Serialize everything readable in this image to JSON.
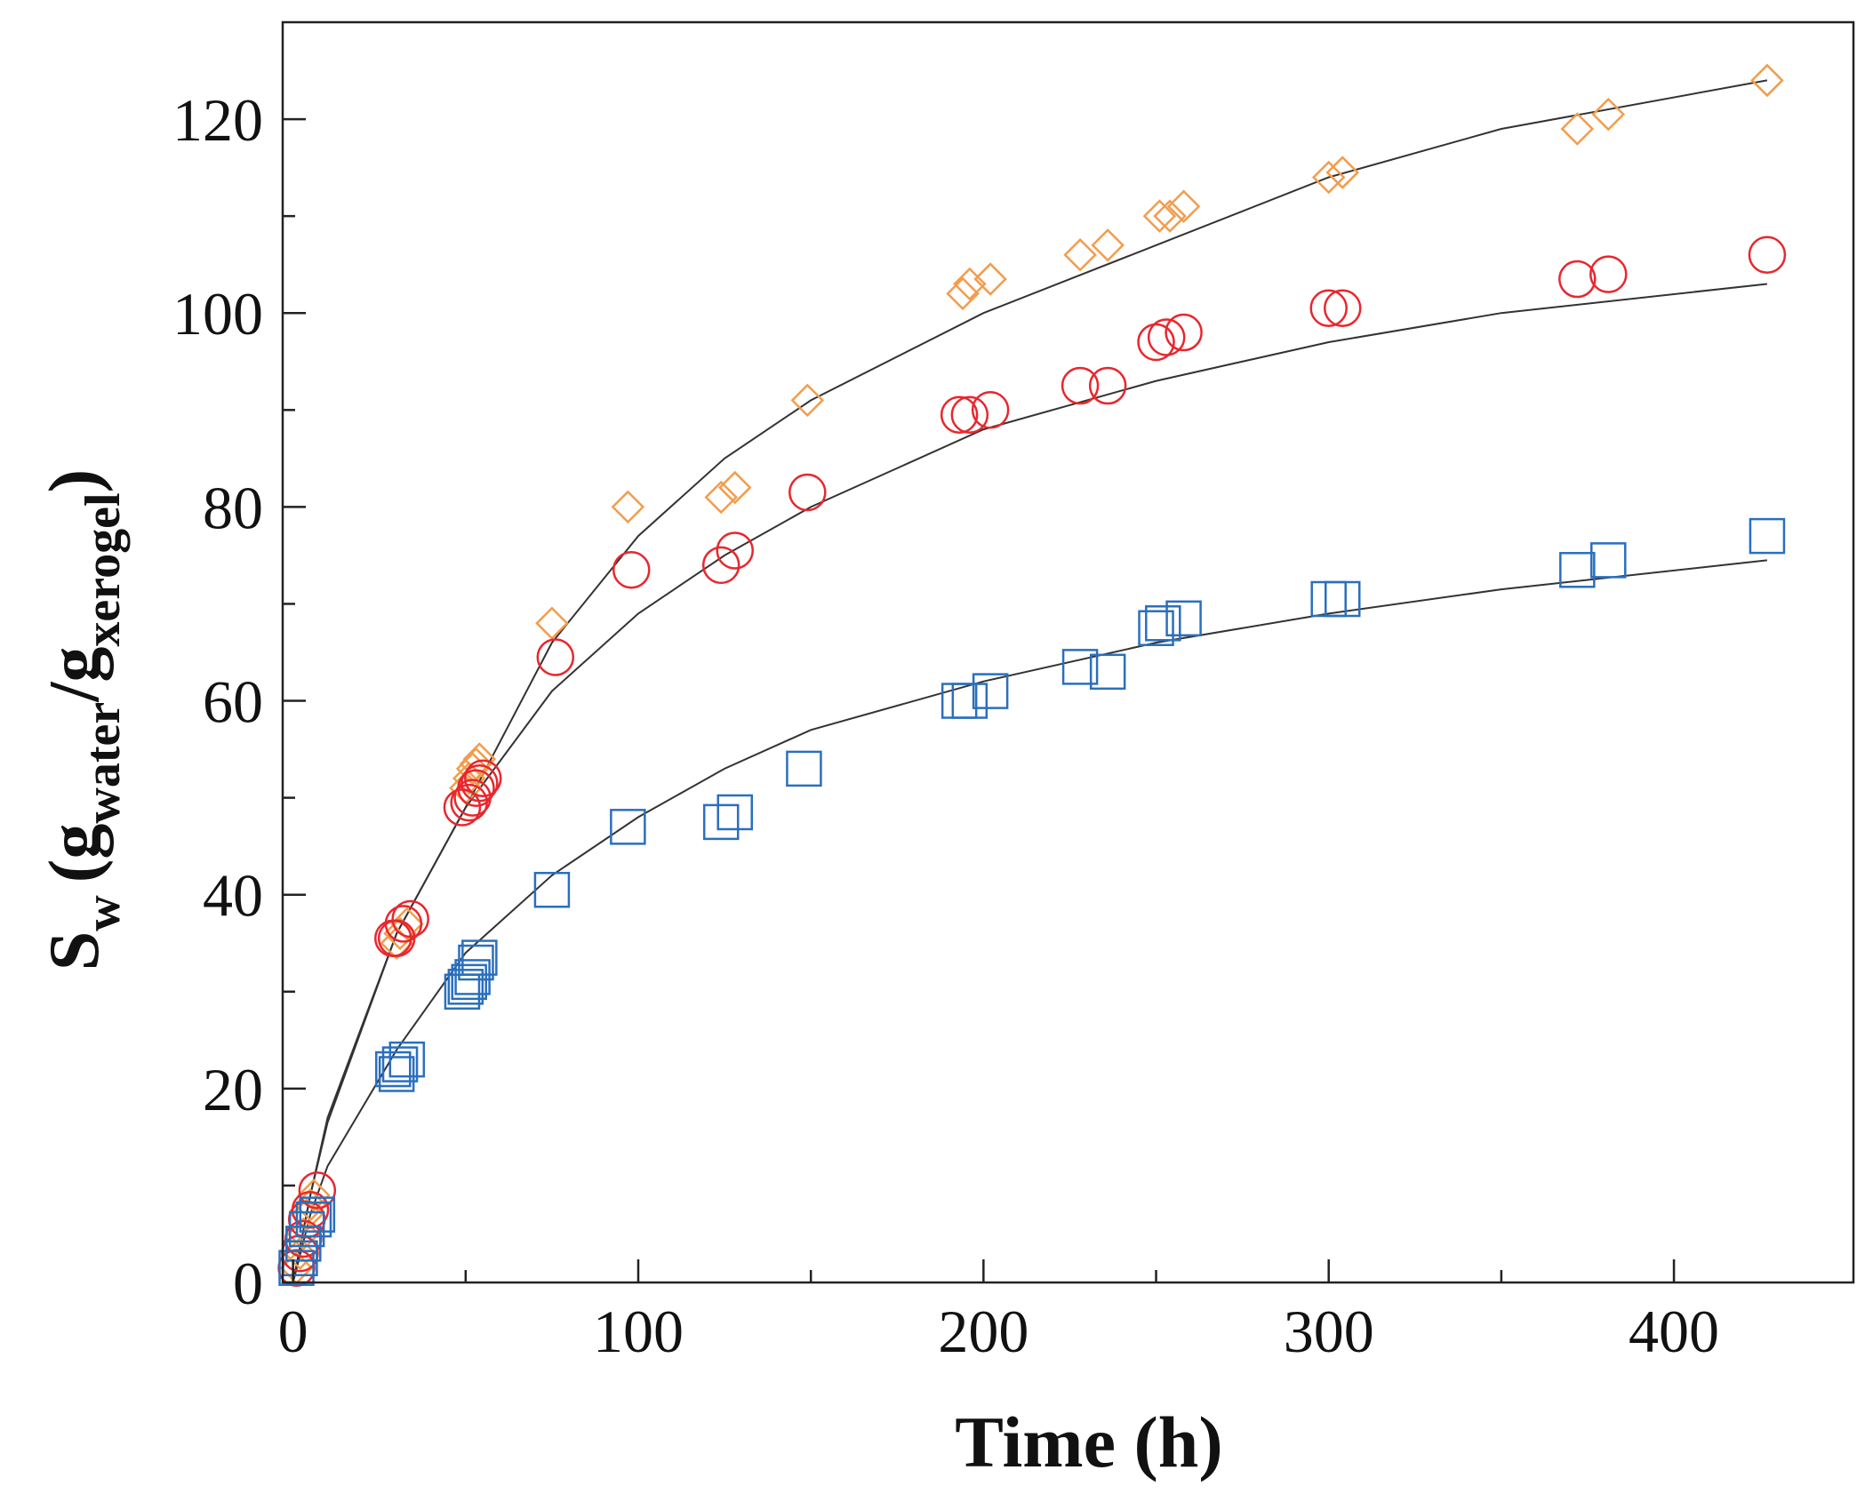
{
  "chart_data": {
    "type": "scatter",
    "title": "",
    "xlabel": "Time (h)",
    "ylabel": {
      "main": "S",
      "main_sub": "w",
      "open": "(g",
      "num_sub": "water",
      "slash": "/g",
      "den_sub": "xerogel",
      "close": ")"
    },
    "xlim": [
      -3,
      452
    ],
    "ylim": [
      0,
      130
    ],
    "x_ticks": [
      "0",
      "100",
      "200",
      "300",
      "400"
    ],
    "x_tick_values": [
      0,
      100,
      200,
      300,
      400
    ],
    "x_minor_ticks": [
      50,
      150,
      250,
      350
    ],
    "y_ticks": [
      "0",
      "20",
      "40",
      "60",
      "80",
      "100",
      "120"
    ],
    "y_tick_values": [
      0,
      20,
      40,
      60,
      80,
      100,
      120
    ],
    "y_minor_ticks": [
      10,
      30,
      50,
      70,
      90,
      110
    ],
    "grid": false,
    "legend": "none",
    "series": [
      {
        "marker": "diamond",
        "color": "#f39c4b",
        "points": [
          [
            1,
            1.5
          ],
          [
            2,
            3
          ],
          [
            3,
            5
          ],
          [
            4,
            7
          ],
          [
            5,
            8
          ],
          [
            6,
            9
          ],
          [
            30,
            35
          ],
          [
            31,
            36
          ],
          [
            33,
            37
          ],
          [
            50,
            51
          ],
          [
            51,
            52
          ],
          [
            52,
            53
          ],
          [
            53,
            53.5
          ],
          [
            54,
            54
          ],
          [
            75,
            68
          ],
          [
            97,
            80
          ],
          [
            124,
            81
          ],
          [
            128,
            82
          ],
          [
            149,
            91
          ],
          [
            194,
            102
          ],
          [
            196,
            103
          ],
          [
            202,
            103.5
          ],
          [
            228,
            106
          ],
          [
            236,
            107
          ],
          [
            251,
            110
          ],
          [
            254,
            110
          ],
          [
            258,
            111
          ],
          [
            300,
            114
          ],
          [
            304,
            114.5
          ],
          [
            372,
            119
          ],
          [
            381,
            120.5
          ],
          [
            427,
            124
          ]
        ]
      },
      {
        "marker": "circle",
        "color": "#e8272e",
        "points": [
          [
            1,
            1.5
          ],
          [
            2,
            3
          ],
          [
            3,
            4.5
          ],
          [
            4,
            6.5
          ],
          [
            5,
            7.5
          ],
          [
            7,
            9.5
          ],
          [
            29,
            35.5
          ],
          [
            30,
            35.5
          ],
          [
            32,
            37
          ],
          [
            34,
            37.5
          ],
          [
            49,
            49
          ],
          [
            51,
            49.5
          ],
          [
            52,
            50
          ],
          [
            53,
            51
          ],
          [
            54,
            51.5
          ],
          [
            55,
            52
          ],
          [
            76,
            64.5
          ],
          [
            98,
            73.5
          ],
          [
            124,
            74
          ],
          [
            128,
            75.5
          ],
          [
            149,
            81.5
          ],
          [
            193,
            89.5
          ],
          [
            196,
            89.5
          ],
          [
            202,
            90
          ],
          [
            228,
            92.5
          ],
          [
            236,
            92.5
          ],
          [
            250,
            97
          ],
          [
            253,
            97.5
          ],
          [
            258,
            98
          ],
          [
            300,
            100.5
          ],
          [
            304,
            100.5
          ],
          [
            372,
            103.5
          ],
          [
            381,
            104
          ],
          [
            427,
            106
          ]
        ]
      },
      {
        "marker": "square",
        "color": "#2a6fbe",
        "points": [
          [
            1,
            1.5
          ],
          [
            2,
            2.5
          ],
          [
            3,
            4
          ],
          [
            4,
            5.5
          ],
          [
            6,
            6.5
          ],
          [
            7,
            7
          ],
          [
            29,
            22
          ],
          [
            30,
            21.5
          ],
          [
            31,
            22.5
          ],
          [
            33,
            23
          ],
          [
            49,
            30
          ],
          [
            50,
            30.5
          ],
          [
            51,
            31
          ],
          [
            52,
            31.5
          ],
          [
            53,
            33
          ],
          [
            54,
            33.5
          ],
          [
            75,
            40.5
          ],
          [
            97,
            47
          ],
          [
            124,
            47.5
          ],
          [
            128,
            48.5
          ],
          [
            148,
            53
          ],
          [
            193,
            60
          ],
          [
            196,
            60
          ],
          [
            202,
            61
          ],
          [
            228,
            63.5
          ],
          [
            236,
            63
          ],
          [
            250,
            67.5
          ],
          [
            252,
            68
          ],
          [
            258,
            68.5
          ],
          [
            300,
            70.5
          ],
          [
            304,
            70.5
          ],
          [
            372,
            73.5
          ],
          [
            381,
            74.5
          ],
          [
            427,
            77
          ]
        ]
      }
    ],
    "fits": [
      {
        "x": [
          0,
          5,
          10,
          30,
          50,
          75,
          100,
          125,
          150,
          200,
          250,
          300,
          350,
          427
        ],
        "y": [
          0,
          9,
          17,
          36,
          49,
          66,
          77,
          85,
          91,
          100,
          107,
          114,
          119,
          124
        ]
      },
      {
        "x": [
          0,
          5,
          10,
          30,
          50,
          75,
          100,
          125,
          150,
          200,
          250,
          300,
          350,
          427
        ],
        "y": [
          0,
          9,
          16.5,
          36,
          49,
          61,
          69,
          75,
          80,
          88,
          93,
          97,
          100,
          103
        ]
      },
      {
        "x": [
          0,
          5,
          10,
          30,
          50,
          75,
          100,
          125,
          150,
          200,
          250,
          300,
          350,
          427
        ],
        "y": [
          0,
          7,
          12,
          24,
          34,
          42,
          48,
          53,
          57,
          62,
          66,
          69,
          71.5,
          74.5
        ]
      }
    ]
  }
}
